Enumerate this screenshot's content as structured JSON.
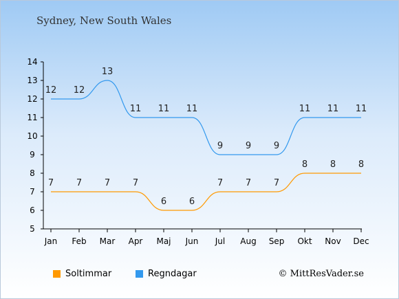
{
  "subtitle": "Sydney, New South Wales",
  "credit": "© MittResVader.se",
  "colors": {
    "sun": "#ff9900",
    "rain": "#3399ee",
    "axis": "#000000"
  },
  "chart_data": {
    "type": "line",
    "categories": [
      "Jan",
      "Feb",
      "Mar",
      "Apr",
      "Maj",
      "Jun",
      "Jul",
      "Aug",
      "Sep",
      "Okt",
      "Nov",
      "Dec"
    ],
    "ylim": [
      5,
      14
    ],
    "yticks": [
      5,
      6,
      7,
      8,
      9,
      10,
      11,
      12,
      13,
      14
    ],
    "grid": false,
    "legend_position": "bottom-left",
    "series": [
      {
        "name": "Soltimmar",
        "color": "#ff9900",
        "values": [
          7,
          7,
          7,
          7,
          6,
          6,
          7,
          7,
          7,
          8,
          8,
          8
        ]
      },
      {
        "name": "Regndagar",
        "color": "#3399ee",
        "values": [
          12,
          12,
          13,
          11,
          11,
          11,
          9,
          9,
          9,
          11,
          11,
          11
        ]
      }
    ]
  }
}
